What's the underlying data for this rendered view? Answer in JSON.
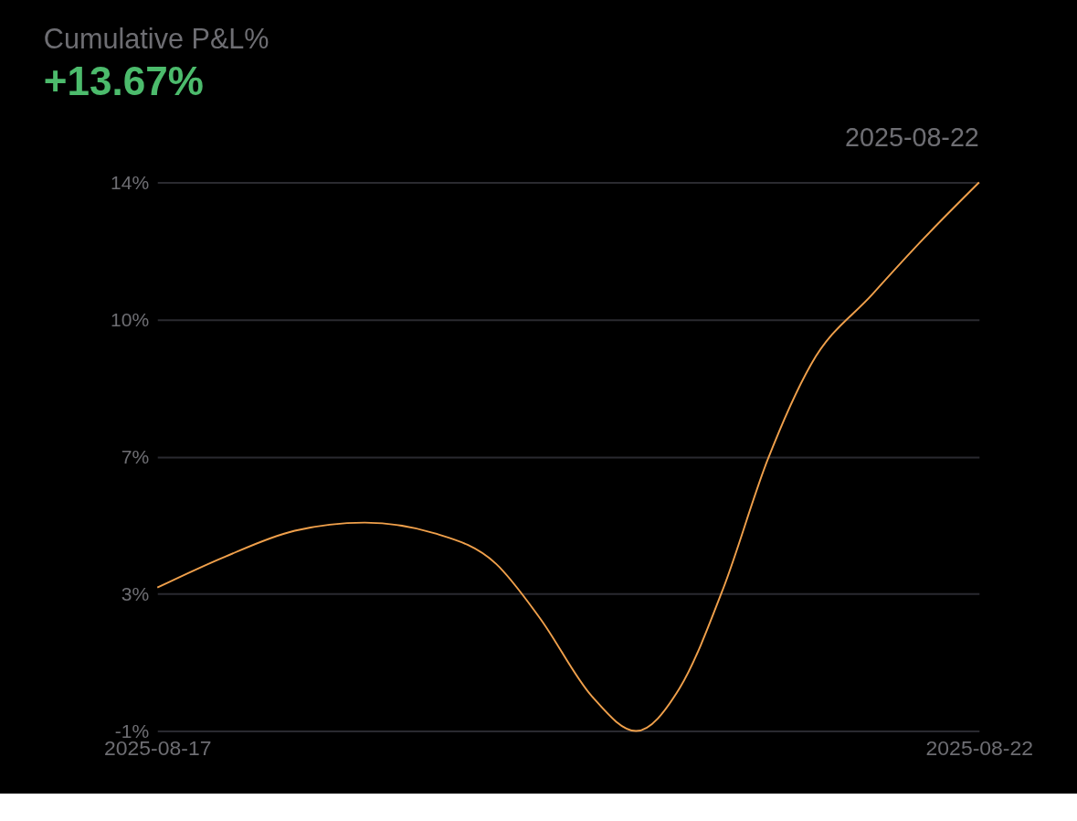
{
  "chart_data": {
    "type": "line",
    "title": "Cumulative P&L%",
    "subtitle": "+13.67%",
    "annotations": [
      "2025-08-22"
    ],
    "x": [
      "2025-08-17",
      "2025-08-17T09:50",
      "2025-08-17T20:04",
      "2025-08-18T06:17",
      "2025-08-18T16:31",
      "2025-08-19T01:27",
      "2025-08-19T07:51",
      "2025-08-19T15:31",
      "2025-08-19T21:54",
      "2025-08-20T04:17",
      "2025-08-20T10:41",
      "2025-08-20T17:04",
      "2025-08-20T23:28",
      "2025-08-21T08:25",
      "2025-08-21T16:04",
      "2025-08-22"
    ],
    "series": [
      {
        "color": "#f0a04b",
        "values": [
          3.13,
          3.93,
          4.61,
          4.82,
          4.54,
          3.75,
          2.34,
          0.29,
          -0.6,
          0.52,
          3.13,
          6.43,
          8.94,
          10.76,
          12.24,
          13.67
        ]
      }
    ],
    "xlim": [
      "2025-08-17",
      "2025-08-22"
    ],
    "xticks": [
      "2025-08-17",
      "2025-08-22"
    ],
    "ylim": [
      -0.6,
      13.67
    ],
    "yticks": [
      {
        "value": -0.6,
        "label": "-1%"
      },
      {
        "value": 2.97,
        "label": "3%"
      },
      {
        "value": 6.53,
        "label": "7%"
      },
      {
        "value": 10.1,
        "label": "10%"
      },
      {
        "value": 13.67,
        "label": "14%"
      }
    ],
    "grid": "y",
    "marker": "none",
    "line_style": "solid"
  }
}
